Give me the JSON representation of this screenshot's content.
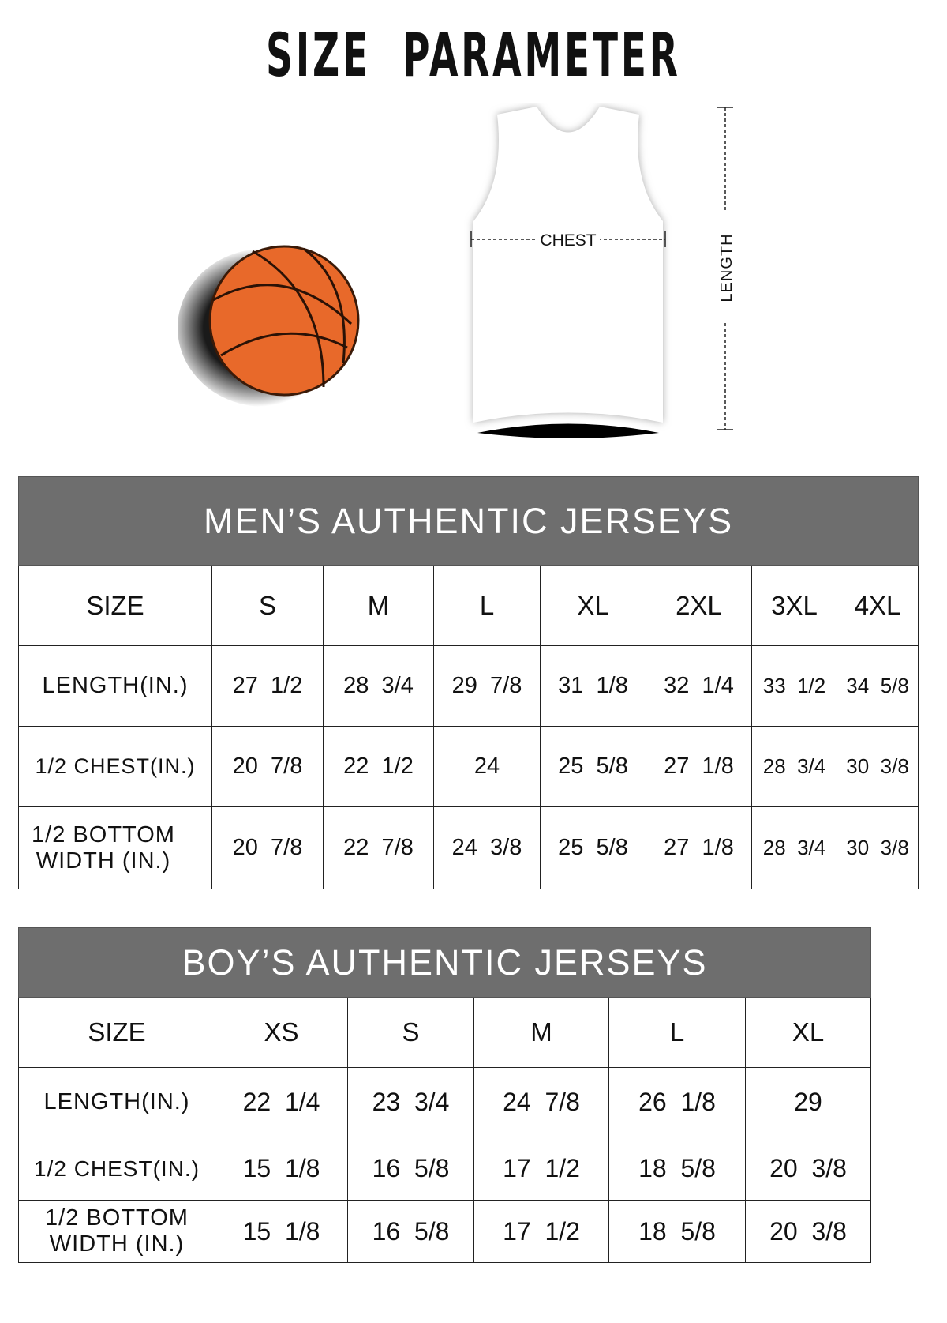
{
  "title": "SIZE  PARAMETER",
  "diagram": {
    "chest_label": "CHEST",
    "length_label": "LENGTH",
    "ball_color": "#e8692a"
  },
  "colors": {
    "header_band": "#6e6e6e"
  },
  "mens": {
    "title": "MEN’S AUTHENTIC JERSEYS",
    "columns": [
      "SIZE",
      "S",
      "M",
      "L",
      "XL",
      "2XL",
      "3XL",
      "4XL"
    ],
    "rows": [
      {
        "label": "LENGTH(IN.)",
        "values": [
          "27  1/2",
          "28  3/4",
          "29  7/8",
          "31  1/8",
          "32  1/4",
          "33  1/2",
          "34  5/8"
        ]
      },
      {
        "label": "1/2 CHEST(IN.)",
        "values": [
          "20  7/8",
          "22  1/2",
          "24",
          "25  5/8",
          "27  1/8",
          "28  3/4",
          "30  3/8"
        ]
      },
      {
        "label": "1/2 BOTTOM WIDTH  (IN.)",
        "values": [
          "20  7/8",
          "22  7/8",
          "24  3/8",
          "25  5/8",
          "27  1/8",
          "28  3/4",
          "30  3/8"
        ]
      }
    ]
  },
  "boys": {
    "title": "BOY’S AUTHENTIC JERSEYS",
    "columns": [
      "SIZE",
      "XS",
      "S",
      "M",
      "L",
      "XL"
    ],
    "rows": [
      {
        "label": "LENGTH(IN.)",
        "values": [
          "22  1/4",
          "23  3/4",
          "24  7/8",
          "26  1/8",
          "29"
        ]
      },
      {
        "label": "1/2 CHEST(IN.)",
        "values": [
          "15  1/8",
          "16  5/8",
          "17  1/2",
          "18  5/8",
          "20  3/8"
        ]
      },
      {
        "label": "1/2 BOTTOM WIDTH  (IN.)",
        "values": [
          "15  1/8",
          "16  5/8",
          "17  1/2",
          "18  5/8",
          "20  3/8"
        ]
      }
    ]
  }
}
